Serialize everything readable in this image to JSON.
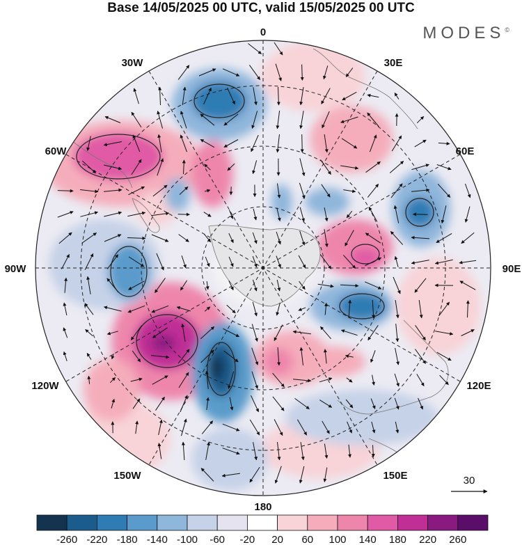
{
  "title": "Base 14/05/2025 00 UTC, valid 15/05/2025 00 UTC",
  "brand": "MODES",
  "brand_mark": "©",
  "lon_labels": {
    "top": "0",
    "n30e": "30E",
    "n60e": "60E",
    "e90": "90E",
    "s120e": "120E",
    "s150e": "150E",
    "bottom": "180",
    "s150w": "150W",
    "s120w": "120W",
    "w90": "90W",
    "n60w": "60W",
    "n30w": "30W"
  },
  "vector_reference": "30",
  "colorbar": {
    "ticks": [
      "-260",
      "-220",
      "-180",
      "-140",
      "-100",
      "-60",
      "-20",
      "20",
      "60",
      "100",
      "140",
      "180",
      "220",
      "260"
    ],
    "colors": [
      "#14334f",
      "#1c5c8c",
      "#2f7bb4",
      "#5a9bcb",
      "#8fb6db",
      "#c6d2e8",
      "#e6e3f0",
      "#ffffff",
      "#f8d3d7",
      "#f5adbb",
      "#ee86ac",
      "#e05aa5",
      "#c02f96",
      "#8a1a80",
      "#5b0d6a"
    ]
  }
}
